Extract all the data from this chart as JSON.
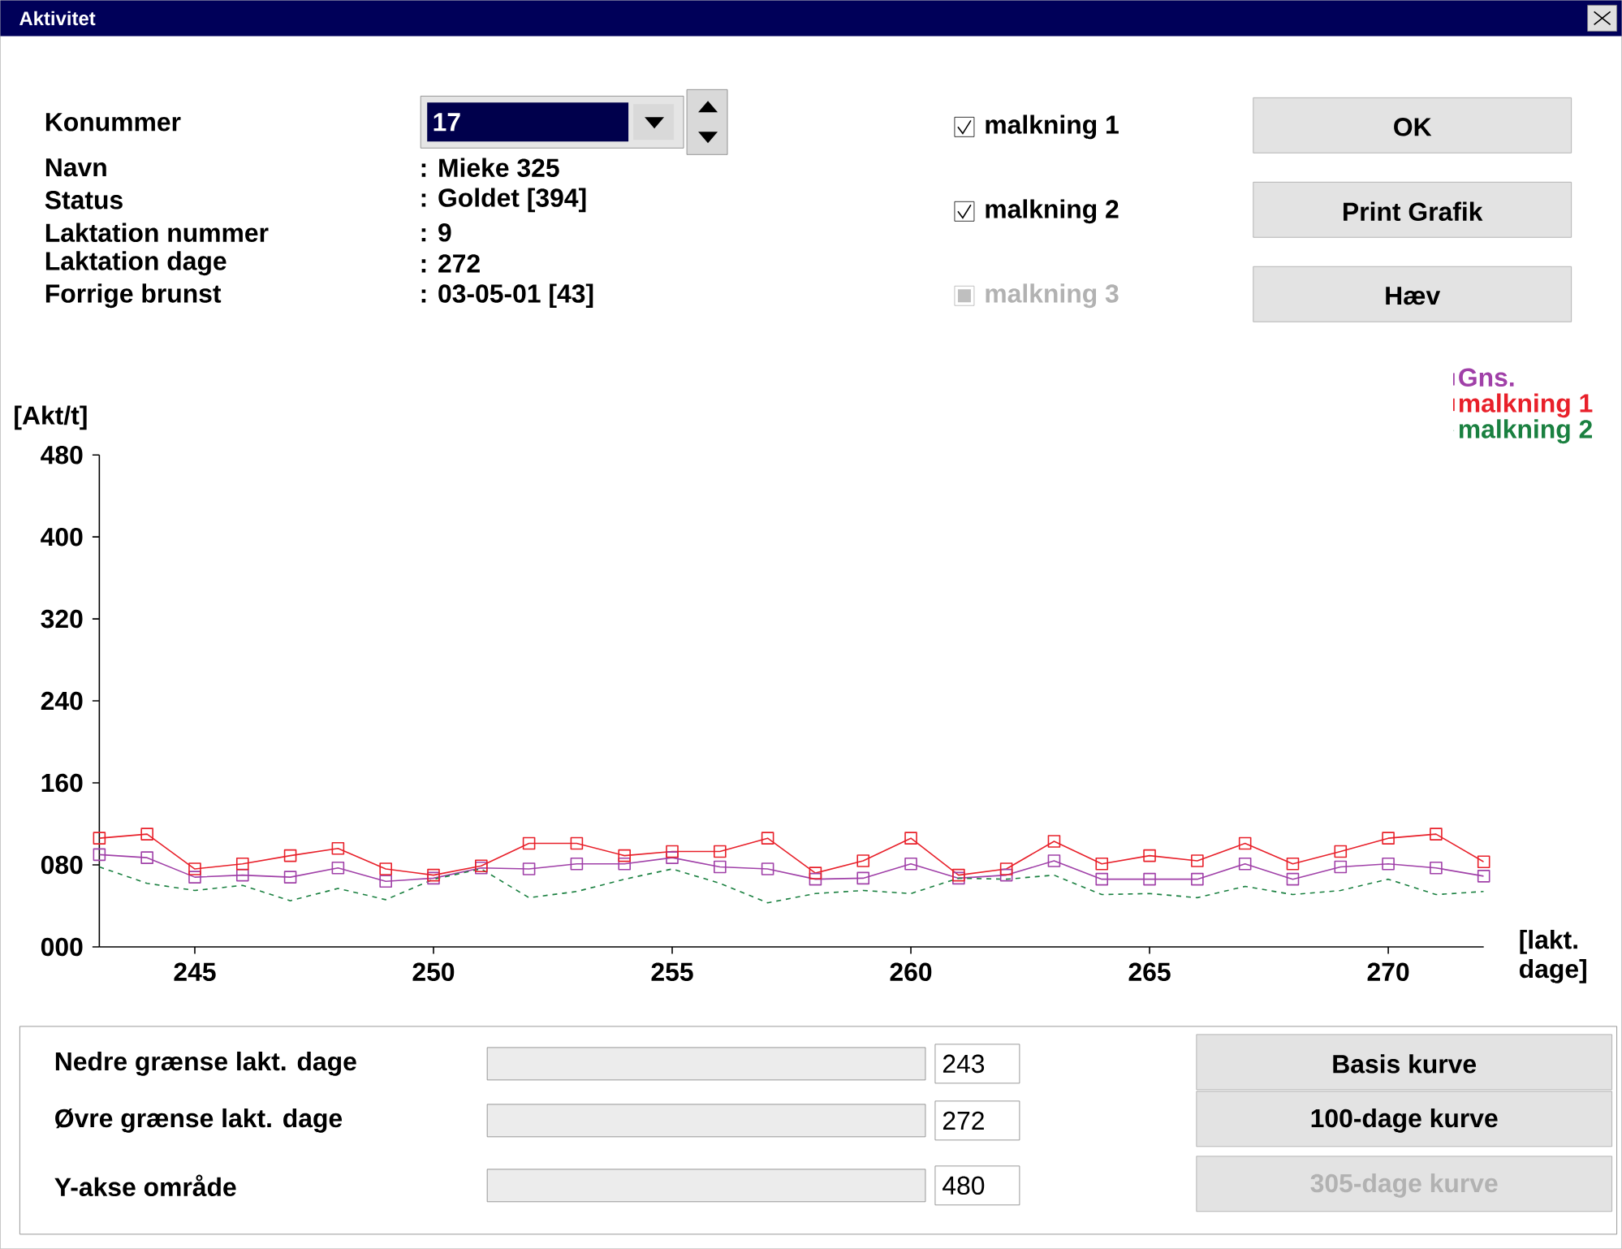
{
  "chart_data": {
    "type": "line",
    "title": "Aktivitet",
    "xlabel": "[lakt. dage]",
    "ylabel": "[Akt/t]",
    "x": [
      243,
      244,
      245,
      246,
      247,
      248,
      249,
      250,
      251,
      252,
      253,
      254,
      255,
      256,
      257,
      258,
      259,
      260,
      261,
      262,
      263,
      264,
      265,
      266,
      267,
      268,
      269,
      270,
      271,
      272
    ],
    "series": [
      {
        "name": "Gns.",
        "color": "#a040a8",
        "marker": "square",
        "line_style": "solid",
        "values": [
          90,
          87,
          68,
          70,
          68,
          77,
          64,
          67,
          77,
          76,
          81,
          81,
          87,
          78,
          76,
          66,
          67,
          81,
          67,
          70,
          84,
          66,
          66,
          66,
          81,
          66,
          78,
          81,
          77,
          69
        ]
      },
      {
        "name": "malkning 1",
        "color": "#e8202a",
        "marker": "square",
        "line_style": "solid",
        "values": [
          106,
          110,
          76,
          81,
          89,
          96,
          76,
          70,
          79,
          101,
          101,
          89,
          93,
          93,
          106,
          72,
          84,
          106,
          70,
          76,
          103,
          81,
          89,
          84,
          101,
          81,
          93,
          106,
          110,
          83
        ]
      },
      {
        "name": "malkning 2",
        "color": "#1a8040",
        "marker": "none",
        "line_style": "dashed",
        "values": [
          78,
          62,
          55,
          60,
          45,
          57,
          46,
          66,
          76,
          48,
          54,
          66,
          76,
          62,
          43,
          52,
          55,
          52,
          67,
          66,
          70,
          51,
          52,
          48,
          59,
          51,
          55,
          66,
          51,
          54
        ]
      }
    ],
    "xlim": [
      243,
      272
    ],
    "ylim": [
      0,
      480
    ],
    "xticks": [
      245,
      250,
      255,
      260,
      265,
      270
    ],
    "yticks": [
      {
        "value": 0,
        "label": "000"
      },
      {
        "value": 80,
        "label": "080"
      },
      {
        "value": 160,
        "label": "160"
      },
      {
        "value": 240,
        "label": "240"
      },
      {
        "value": 320,
        "label": "320"
      },
      {
        "value": 400,
        "label": "400"
      },
      {
        "value": 480,
        "label": "480"
      }
    ],
    "legend": "top right",
    "grid": false,
    "annotations": [
      "Konummer",
      "17",
      "Navn",
      ": Mieke 325",
      "Status",
      ": Goldet [394]",
      "Laktation nummer",
      ": 9",
      "Laktation dage",
      ": 272",
      "Forrige brunst",
      ": 03-05-01 [43]",
      "malkning 1",
      "malkning 2",
      "malkning 3",
      "OK",
      "Print Grafik",
      "Hæv",
      "Nedre grænse lakt. dage",
      "243",
      "Øvre grænse lakt. dage",
      "272",
      "Y-akse område",
      "480",
      "Basis kurve",
      "100-dage kurve",
      "305-dage kurve"
    ]
  }
}
